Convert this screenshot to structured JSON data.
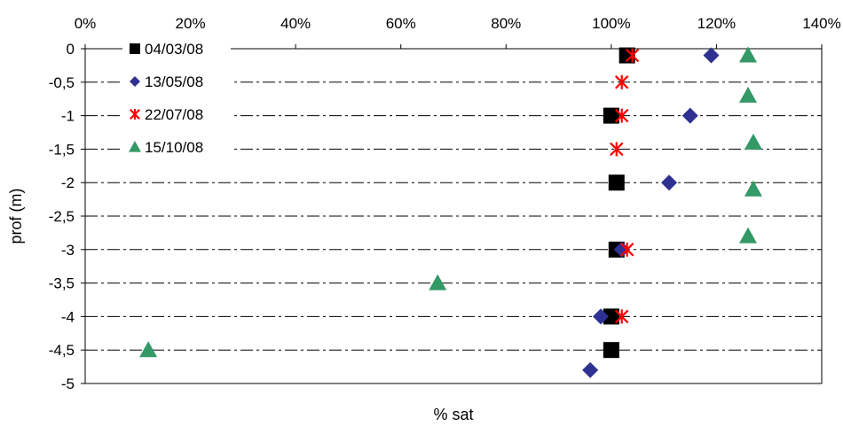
{
  "chart_data": {
    "type": "scatter",
    "title": "",
    "xlabel": "% sat",
    "ylabel": "prof (m)",
    "xlim": [
      0,
      1.4
    ],
    "ylim": [
      -5,
      0
    ],
    "x_ticks": [
      "0%",
      "20%",
      "40%",
      "60%",
      "80%",
      "100%",
      "120%",
      "140%"
    ],
    "x_tick_values": [
      0,
      0.2,
      0.4,
      0.6,
      0.8,
      1.0,
      1.2,
      1.4
    ],
    "y_ticks": [
      "0",
      "-0,5",
      "-1",
      "-1,5",
      "-2",
      "-2,5",
      "-3",
      "-3,5",
      "-4",
      "-4,5",
      "-5"
    ],
    "y_tick_values": [
      0,
      -0.5,
      -1,
      -1.5,
      -2,
      -2.5,
      -3,
      -3.5,
      -4,
      -4.5,
      -5
    ],
    "x_axis_position": "top",
    "grid": "horizontal dashed",
    "legend_position": "top-left inside",
    "series": [
      {
        "name": "04/03/08",
        "marker": "square",
        "color": "#000000",
        "points": [
          {
            "x": 1.03,
            "y": -0.1
          },
          {
            "x": 1.0,
            "y": -1.0
          },
          {
            "x": 1.01,
            "y": -2.0
          },
          {
            "x": 1.01,
            "y": -3.0
          },
          {
            "x": 1.0,
            "y": -4.0
          },
          {
            "x": 1.0,
            "y": -4.5
          }
        ]
      },
      {
        "name": "13/05/08",
        "marker": "diamond",
        "color": "#2E3192",
        "points": [
          {
            "x": 1.19,
            "y": -0.1
          },
          {
            "x": 1.15,
            "y": -1.0
          },
          {
            "x": 1.11,
            "y": -2.0
          },
          {
            "x": 1.02,
            "y": -3.0
          },
          {
            "x": 0.98,
            "y": -4.0
          },
          {
            "x": 0.96,
            "y": -4.8
          }
        ]
      },
      {
        "name": "22/07/08",
        "marker": "asterisk",
        "color": "#FF0000",
        "points": [
          {
            "x": 1.04,
            "y": -0.1
          },
          {
            "x": 1.02,
            "y": -0.5
          },
          {
            "x": 1.02,
            "y": -1.0
          },
          {
            "x": 1.01,
            "y": -1.5
          },
          {
            "x": 1.03,
            "y": -3.0
          },
          {
            "x": 1.02,
            "y": -4.0
          }
        ]
      },
      {
        "name": "15/10/08",
        "marker": "triangle",
        "color": "#339966",
        "points": [
          {
            "x": 1.26,
            "y": -0.1
          },
          {
            "x": 1.26,
            "y": -0.7
          },
          {
            "x": 1.27,
            "y": -1.4
          },
          {
            "x": 1.27,
            "y": -2.1
          },
          {
            "x": 1.26,
            "y": -2.8
          },
          {
            "x": 0.67,
            "y": -3.5
          },
          {
            "x": 0.12,
            "y": -4.5
          }
        ]
      }
    ]
  }
}
